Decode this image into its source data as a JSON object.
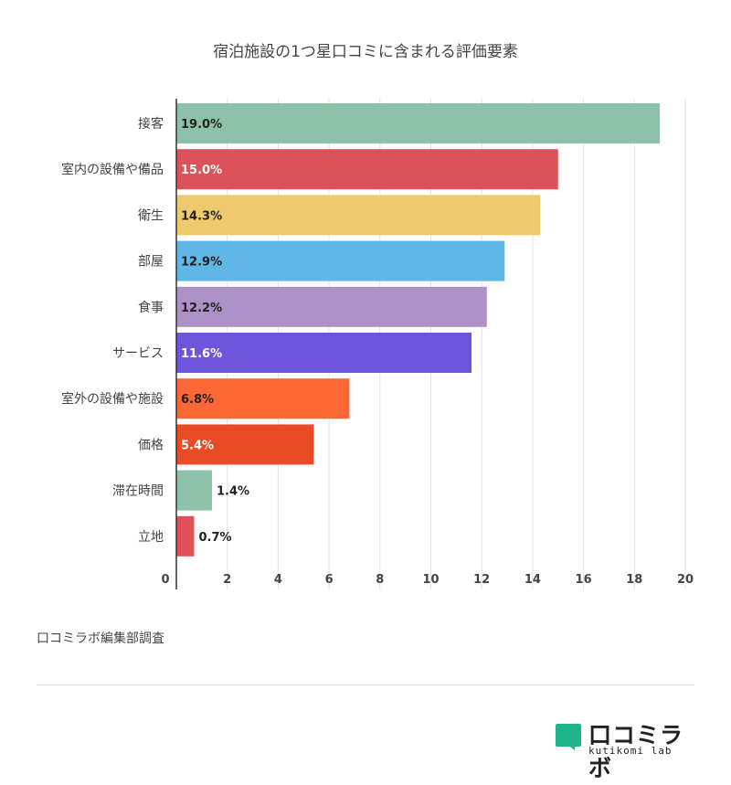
{
  "chart_data": {
    "type": "bar",
    "orientation": "horizontal",
    "title": "宿泊施設の1つ星口コミに含まれる評価要素",
    "categories": [
      "接客",
      "室内の設備や備品",
      "衛生",
      "部屋",
      "食事",
      "サービス",
      "室外の設備や施設",
      "価格",
      "滞在時間",
      "立地"
    ],
    "values": [
      19.0,
      15.0,
      14.3,
      12.9,
      12.2,
      11.6,
      6.8,
      5.4,
      1.4,
      0.7
    ],
    "value_labels": [
      "19.0%",
      "15.0%",
      "14.3%",
      "12.9%",
      "12.2%",
      "11.6%",
      "6.8%",
      "5.4%",
      "1.4%",
      "0.7%"
    ],
    "colors": [
      "#8ec2a8",
      "#dc5258",
      "#efca6c",
      "#5fb7e5",
      "#ab91c6",
      "#6e55dc",
      "#fb6836",
      "#e84b25",
      "#8ec2a8",
      "#dc5258"
    ],
    "label_colors": [
      "#222222",
      "#ffffff",
      "#222222",
      "#222222",
      "#222222",
      "#ffffff",
      "#222222",
      "#ffffff",
      "#222222",
      "#222222"
    ],
    "xticks": [
      0,
      2,
      4,
      6,
      8,
      10,
      12,
      14,
      16,
      18,
      20
    ],
    "xlim": [
      0,
      20
    ],
    "xlabel": "",
    "ylabel": "",
    "grid": true
  },
  "footer": {
    "source": "口コミラボ編集部調査",
    "brand_name": "口コミラボ",
    "brand_sub": "kutikomi lab",
    "brand_color": "#1fb389"
  }
}
